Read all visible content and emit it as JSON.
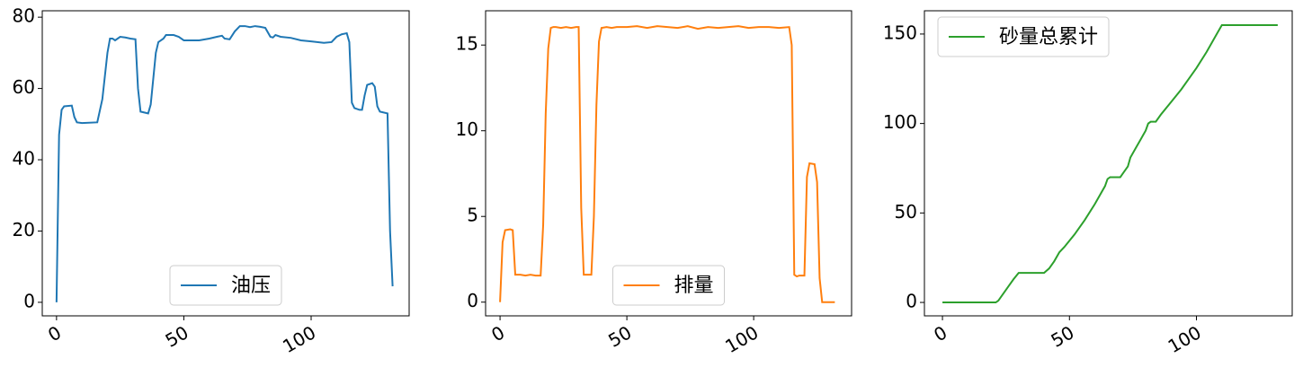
{
  "chart_data": [
    {
      "type": "line",
      "x": [
        0,
        1,
        2,
        3,
        6,
        7,
        8,
        10,
        16,
        18,
        20,
        21,
        22,
        23,
        25,
        27,
        29,
        31,
        32,
        33,
        36,
        37,
        39,
        40,
        42,
        43,
        46,
        48,
        50,
        56,
        60,
        63,
        65,
        66,
        68,
        70,
        72,
        74,
        76,
        78,
        80,
        82,
        84,
        85,
        86,
        88,
        92,
        96,
        100,
        105,
        108,
        110,
        112,
        114,
        115,
        116,
        117,
        119,
        120,
        121,
        122,
        124,
        125,
        126,
        127,
        130,
        131,
        132
      ],
      "series": [
        {
          "name": "油压",
          "color": "#1f77b4",
          "values": [
            0,
            47,
            54,
            55,
            55.2,
            52,
            50.5,
            50.3,
            50.5,
            57,
            70,
            74,
            74,
            73.5,
            74.5,
            74.3,
            74,
            73.8,
            60,
            53.5,
            53,
            55.5,
            70,
            73,
            74,
            75,
            75,
            74.5,
            73.5,
            73.5,
            74,
            74.5,
            74.8,
            74,
            73.8,
            76,
            77.5,
            77.5,
            77.2,
            77.5,
            77.3,
            77,
            74.5,
            74.3,
            75,
            74.5,
            74.2,
            73.5,
            73.2,
            72.8,
            73,
            74.5,
            75.2,
            75.5,
            73,
            56,
            54.5,
            54,
            54,
            58,
            61,
            61.5,
            60.5,
            55,
            53.5,
            53,
            20,
            4.5
          ]
        }
      ],
      "xlim": [
        -5.6,
        138.5
      ],
      "ylim": [
        -3.8,
        81.8
      ],
      "xticks": [
        0,
        50,
        100
      ],
      "yticks": [
        0,
        20,
        40,
        60,
        80
      ],
      "legend": "lower center"
    },
    {
      "type": "line",
      "x": [
        0,
        1,
        2,
        4,
        5,
        6,
        8,
        10,
        12,
        14,
        16,
        17,
        18,
        19,
        20,
        21,
        22,
        24,
        26,
        28,
        30,
        31,
        32,
        33,
        36,
        37,
        38,
        39,
        40,
        42,
        44,
        46,
        50,
        54,
        58,
        62,
        66,
        70,
        74,
        78,
        82,
        86,
        90,
        94,
        98,
        102,
        106,
        110,
        114,
        115,
        116,
        117,
        118,
        120,
        121,
        122,
        124,
        125,
        126,
        127,
        132
      ],
      "series": [
        {
          "name": "排量",
          "color": "#ff7f0e",
          "values": [
            0,
            3.5,
            4.2,
            4.25,
            4.2,
            1.6,
            1.6,
            1.55,
            1.6,
            1.55,
            1.55,
            4.5,
            11,
            14.8,
            16,
            16.05,
            16.05,
            16.0,
            16.05,
            16.0,
            16.05,
            16.05,
            5.5,
            1.6,
            1.6,
            5,
            11.5,
            15.2,
            16,
            16.05,
            16,
            16.05,
            16.05,
            16.1,
            16.0,
            16.1,
            16.05,
            16.0,
            16.1,
            15.95,
            16.05,
            16.0,
            16.05,
            16.1,
            16.0,
            16.05,
            16.05,
            16.0,
            16.05,
            15,
            1.6,
            1.5,
            1.55,
            1.55,
            7.3,
            8.1,
            8.05,
            7,
            1.4,
            0,
            0
          ]
        }
      ],
      "xlim": [
        -5.7,
        138.6
      ],
      "ylim": [
        -0.8,
        17.0
      ],
      "xticks": [
        0,
        50,
        100
      ],
      "yticks": [
        0,
        5,
        10,
        15
      ],
      "legend": "lower center"
    },
    {
      "type": "line",
      "x": [
        0,
        21,
        22,
        24,
        26,
        28,
        30,
        33,
        40,
        42,
        44,
        46,
        48,
        52,
        56,
        60,
        64,
        65,
        66,
        70,
        71,
        73,
        74,
        76,
        78,
        80,
        81,
        82,
        84,
        86,
        90,
        94,
        98,
        100,
        104,
        108,
        110,
        112,
        132
      ],
      "series": [
        {
          "name": "砂量总累计",
          "color": "#2ca02c",
          "values": [
            0,
            0,
            1,
            5,
            9,
            13,
            16.5,
            16.5,
            16.5,
            19,
            23,
            28,
            31,
            38,
            46,
            55,
            65,
            69,
            70,
            70,
            72,
            76,
            81,
            86,
            91,
            96,
            100,
            101,
            101,
            105,
            112,
            119,
            127,
            131,
            140,
            150,
            155,
            155,
            155
          ]
        }
      ],
      "xlim": [
        -7.1,
        137.7
      ],
      "ylim": [
        -7.5,
        163
      ],
      "xticks": [
        0,
        50,
        100
      ],
      "yticks": [
        0,
        50,
        100,
        150
      ],
      "legend": "upper left"
    }
  ]
}
